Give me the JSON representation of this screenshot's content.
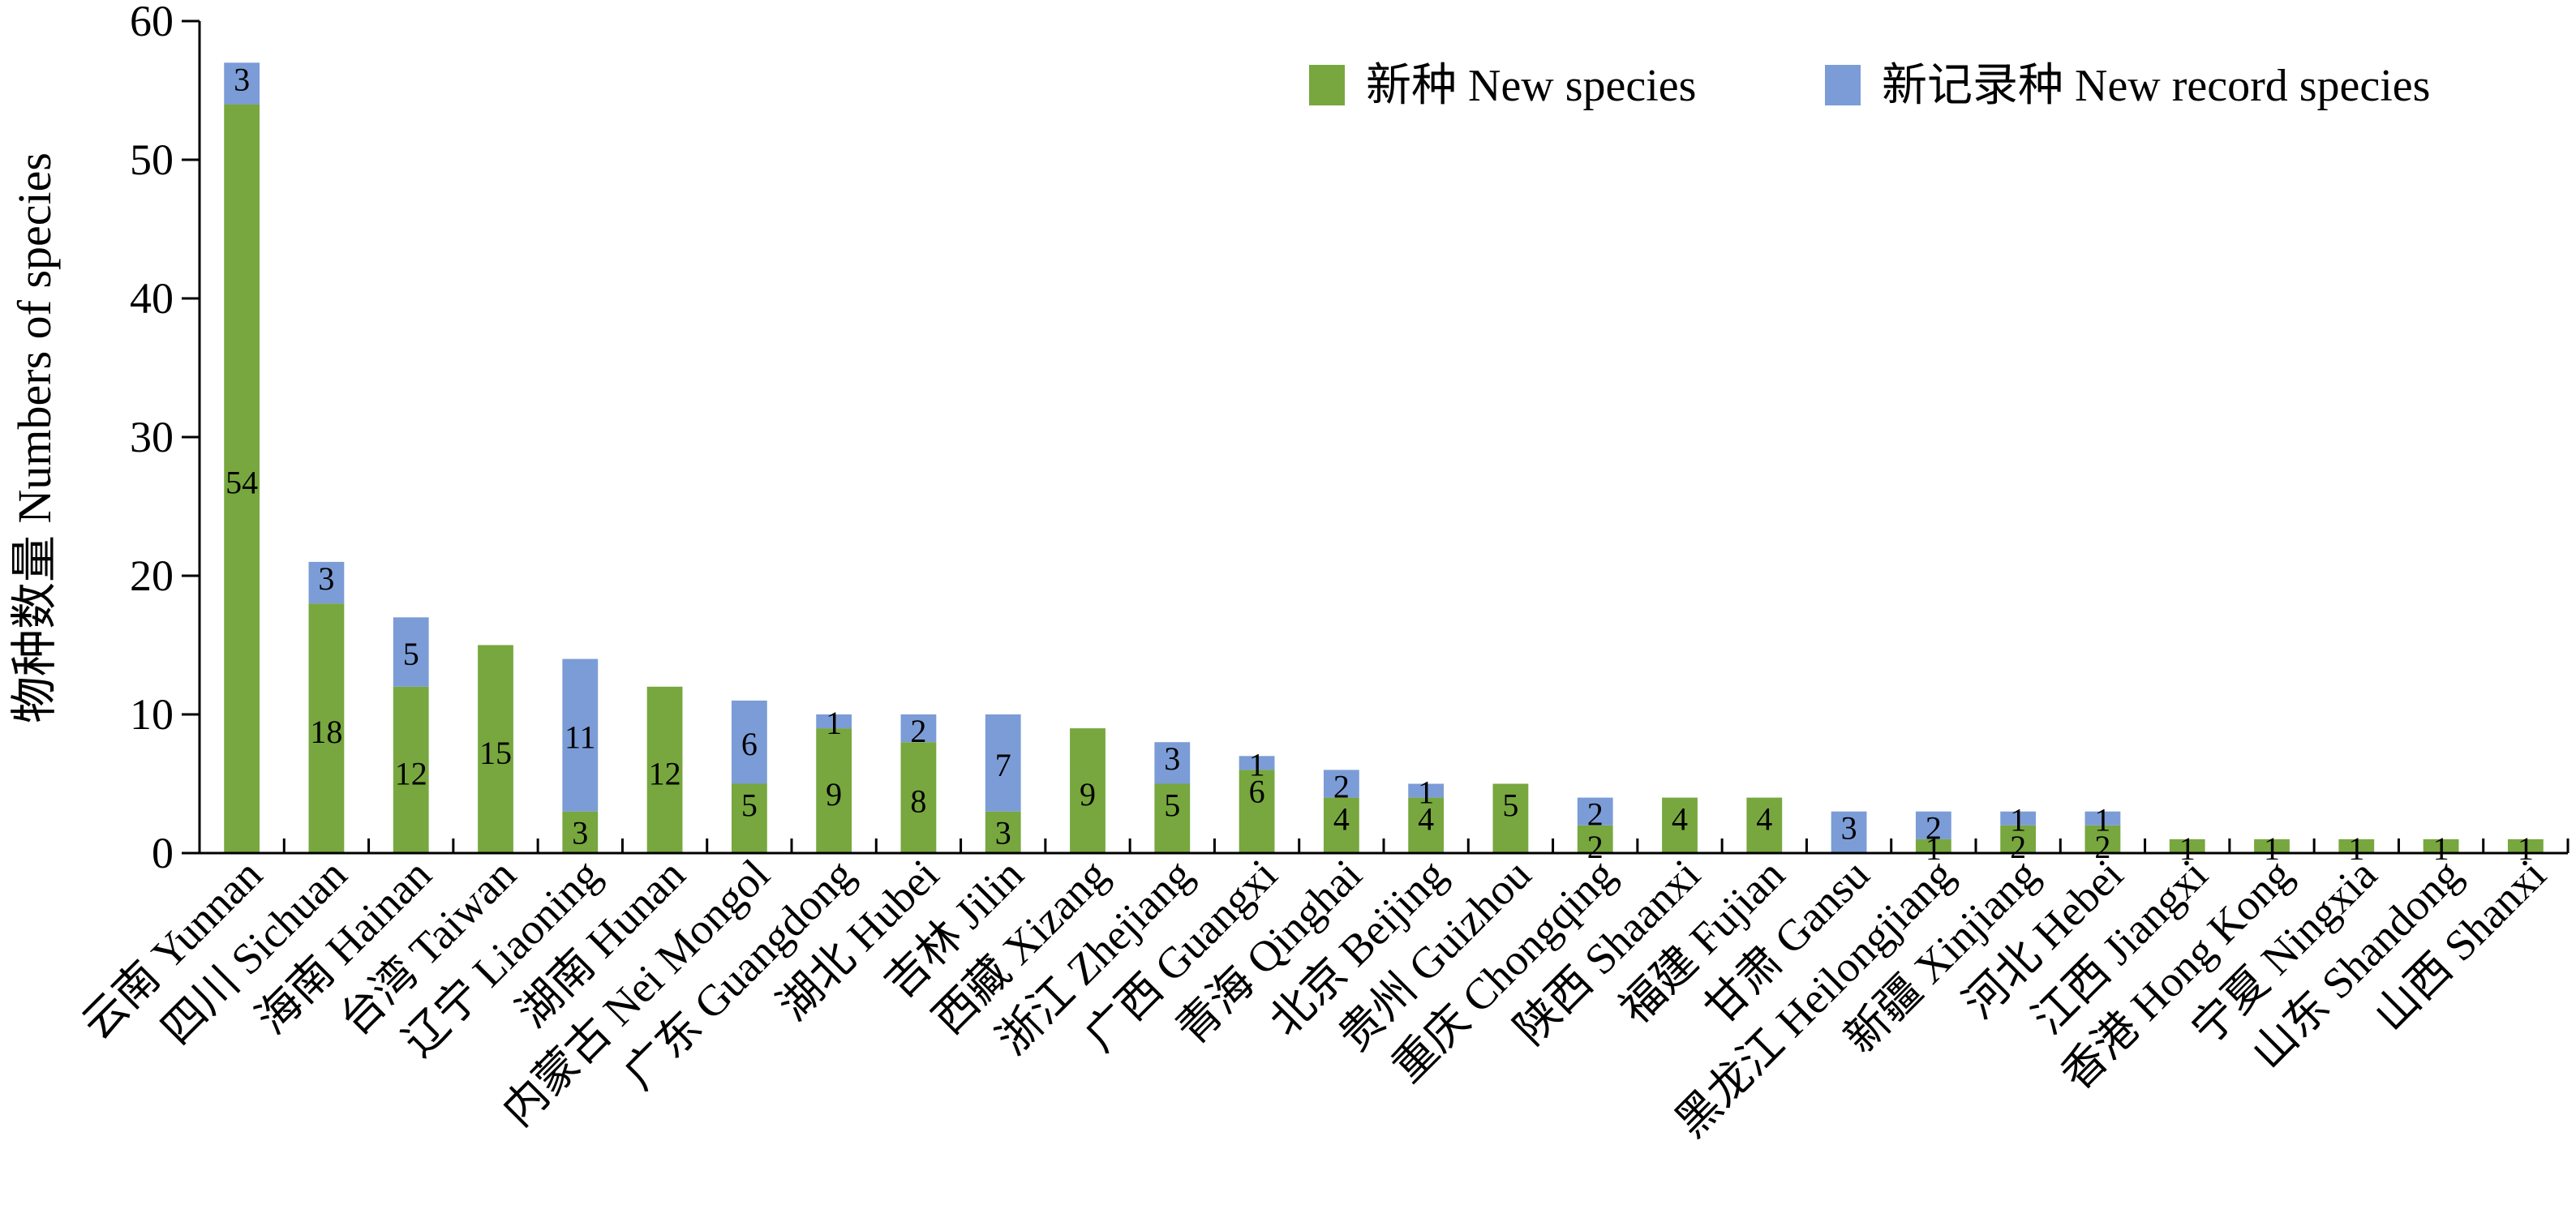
{
  "chart_data": {
    "type": "bar",
    "stacked": true,
    "ylabel": "物种数量 Numbers of species",
    "ylim": [
      0,
      60
    ],
    "yticks": [
      0,
      10,
      20,
      30,
      40,
      50,
      60
    ],
    "grid": false,
    "legend_position": "top-right",
    "categories": [
      "云南 Yunnan",
      "四川 Sichuan",
      "海南 Hainan",
      "台湾 Taiwan",
      "辽宁 Liaoning",
      "湖南 Hunan",
      "内蒙古 Nei Mongol",
      "广东 Guangdong",
      "湖北 Hubei",
      "吉林 Jilin",
      "西藏 Xizang",
      "浙江 Zhejiang",
      "广西 Guangxi",
      "青海 Qinghai",
      "北京 Beijing",
      "贵州 Guizhou",
      "重庆 Chongqing",
      "陕西 Shaanxi",
      "福建 Fujian",
      "甘肃 Gansu",
      "黑龙江 Heilongjiang",
      "新疆 Xinjiang",
      "河北 Hebei",
      "江西 Jiangxi",
      "香港 Hong Kong",
      "宁夏 Ningxia",
      "山东 Shandong",
      "山西 Shanxi"
    ],
    "series": [
      {
        "name": "新种 New species",
        "color": "#77a73e",
        "values": [
          54,
          18,
          12,
          15,
          3,
          12,
          5,
          9,
          8,
          3,
          9,
          5,
          6,
          4,
          4,
          5,
          2,
          4,
          4,
          0,
          1,
          2,
          2,
          1,
          1,
          1,
          1,
          1
        ],
        "labels": [
          "54",
          "18",
          "12",
          "15",
          "3",
          "12",
          "5",
          "9",
          "8",
          "3",
          "9",
          "5",
          "6",
          "4",
          "4",
          "5",
          "2",
          "4",
          "4",
          "",
          "1",
          "2",
          "2",
          "1",
          "1",
          "1",
          "1",
          "1"
        ]
      },
      {
        "name": "新记录种 New record species",
        "color": "#7b9cd6",
        "values": [
          3,
          3,
          5,
          0,
          11,
          0,
          6,
          1,
          2,
          7,
          0,
          3,
          1,
          2,
          1,
          0,
          2,
          0,
          0,
          3,
          2,
          1,
          1,
          0,
          0,
          0,
          0,
          0
        ],
        "labels": [
          "3",
          "3",
          "5",
          "",
          "11",
          "",
          "6",
          "1",
          "2",
          "7",
          "",
          "3",
          "1",
          "2",
          "1",
          "",
          "2",
          "",
          "",
          "3",
          "2",
          "1",
          "1",
          "",
          "",
          "",
          "",
          ""
        ]
      }
    ]
  }
}
